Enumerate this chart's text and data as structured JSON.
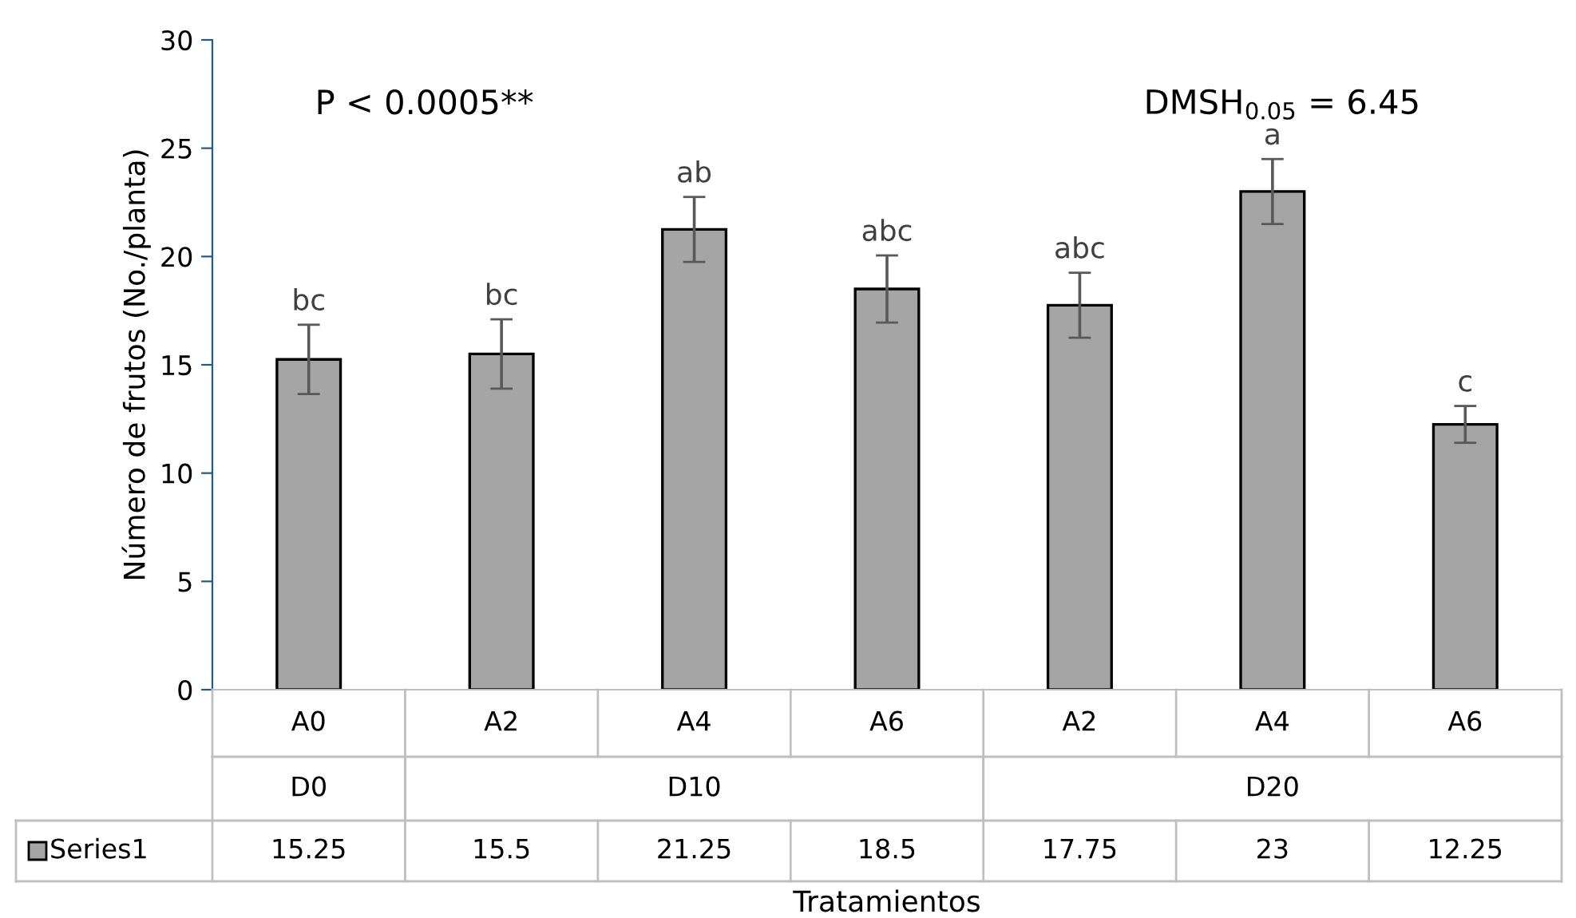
{
  "chart_data": {
    "type": "bar",
    "ylabel": "Número de frutos (No./planta)",
    "categories": [
      "A0",
      "A2",
      "A4",
      "A6",
      "A2",
      "A4",
      "A6"
    ],
    "series": [
      {
        "name": "Series1",
        "color": "#a5a5a5",
        "values": [
          15.25,
          15.5,
          21.25,
          18.5,
          17.75,
          23,
          12.25
        ],
        "errors": [
          1.6,
          1.6,
          1.5,
          1.55,
          1.5,
          1.5,
          0.85
        ]
      }
    ],
    "annotations": [
      "P < 0.0005**",
      "DMSH$_{0.05}$ = 6.45",
      "D0",
      "D10",
      "D20",
      "bc",
      "bc",
      "ab",
      "abc",
      "abc",
      "a",
      "c",
      "Tratamientos"
    ],
    "ylim": [
      0,
      30
    ],
    "yticks": [
      0,
      5,
      10,
      15,
      20,
      25,
      30
    ],
    "grid": false,
    "legend": "bottom",
    "data_labels": true
  }
}
